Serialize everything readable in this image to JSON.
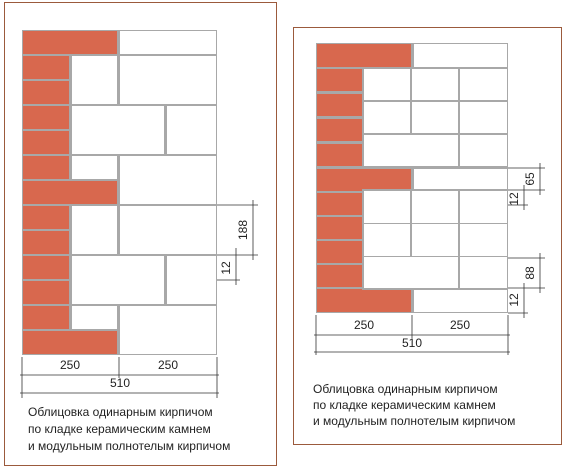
{
  "left": {
    "dims": {
      "bottom_a": "250",
      "bottom_b": "250",
      "total": "510",
      "block_h": "188",
      "joint": "12"
    },
    "caption": [
      "Облицовка одинарным кирпичом",
      "по кладке керамическим камнем",
      "и модульным полнотелым кирпичом"
    ]
  },
  "right": {
    "dims": {
      "bottom_a": "250",
      "bottom_b": "250",
      "total": "510",
      "brick_h": "65",
      "joint_a": "12",
      "module_h": "88",
      "joint_b": "12"
    },
    "caption": [
      "Облицовка одинарным кирпичом",
      "по кладке керамическим камнем",
      "и модульным полнотелым кирпичом"
    ]
  }
}
